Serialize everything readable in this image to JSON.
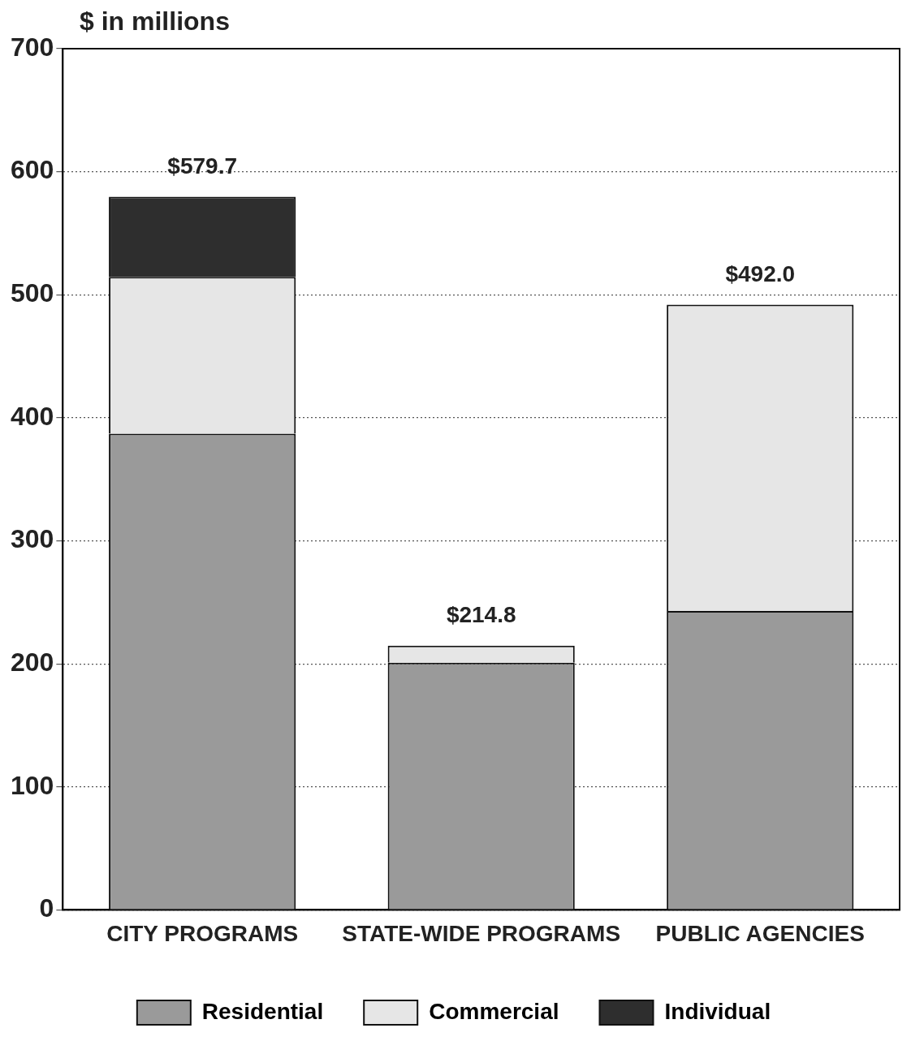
{
  "chart_data": {
    "type": "bar",
    "stacked": true,
    "ylabel": "$ in millions",
    "categories": [
      "CITY PROGRAMS",
      "STATE-WIDE PROGRAMS",
      "PUBLIC AGENCIES"
    ],
    "series": [
      {
        "name": "Residential",
        "color": "#9a9a9a",
        "values": [
          387,
          201,
          243
        ]
      },
      {
        "name": "Commercial",
        "color": "#e6e6e6",
        "values": [
          127.5,
          13.8,
          249
        ]
      },
      {
        "name": "Individual",
        "color": "#2e2e2e",
        "values": [
          65.2,
          0,
          0
        ]
      }
    ],
    "totals": [
      "$579.7",
      "$214.8",
      "$492.0"
    ],
    "ylim": [
      0,
      700
    ],
    "yticks": [
      0,
      100,
      200,
      300,
      400,
      500,
      600,
      700
    ],
    "grid": "y",
    "legend": "bottom"
  }
}
